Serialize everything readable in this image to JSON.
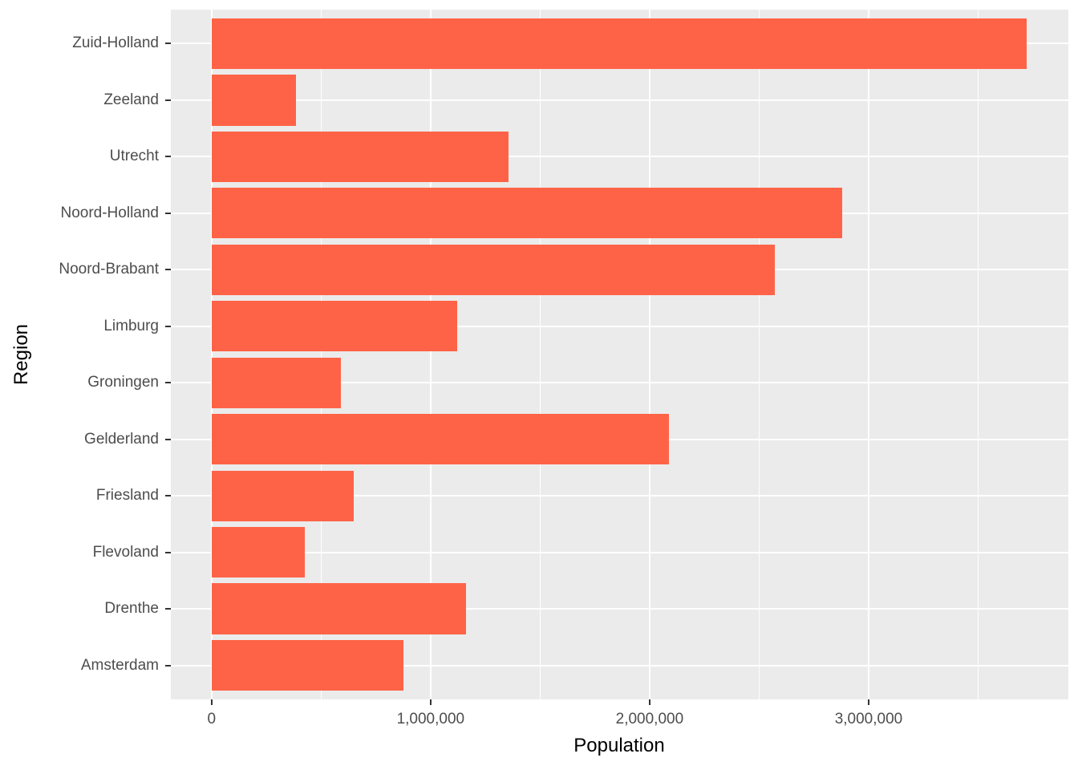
{
  "chart_data": {
    "type": "bar",
    "orientation": "horizontal",
    "title": "",
    "xlabel": "Population",
    "ylabel": "Region",
    "legend": "none",
    "grid": true,
    "categories_top_to_bottom": [
      "Zuid-Holland",
      "Zeeland",
      "Utrecht",
      "Noord-Holland",
      "Noord-Brabant",
      "Limburg",
      "Groningen",
      "Gelderland",
      "Friesland",
      "Flevoland",
      "Drenthe",
      "Amsterdam"
    ],
    "values": [
      3720000,
      385000,
      1355000,
      2880000,
      2570000,
      1120000,
      590000,
      2090000,
      650000,
      425000,
      1160000,
      875000
    ],
    "xlim": [
      -186000,
      3912000
    ],
    "x_ticks": {
      "major": [
        0,
        1000000,
        2000000,
        3000000
      ],
      "labels": [
        "0",
        "1,000,000",
        "2,000,000",
        "3,000,000"
      ],
      "minor": [
        500000,
        1500000,
        2500000,
        3500000
      ]
    },
    "colors": {
      "bar": "#FF6347",
      "panel_bg": "#EBEBEB",
      "grid": "#FFFFFF",
      "tick_mark": "#333333",
      "tick_text": "#4D4D4D",
      "axis_title": "#000000"
    }
  }
}
